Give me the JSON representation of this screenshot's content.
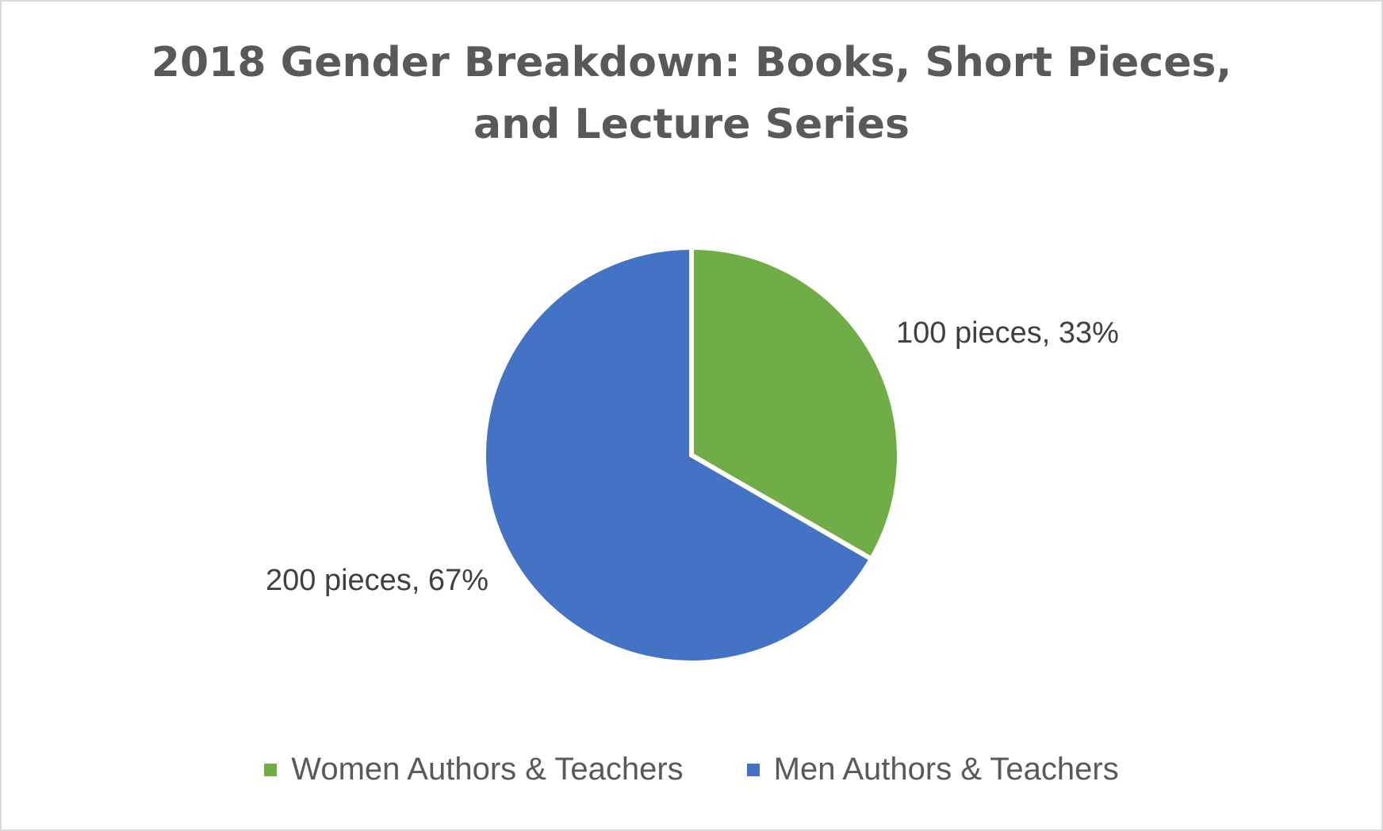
{
  "chart_data": {
    "type": "pie",
    "title_lines": [
      "2018 Gender Breakdown: Books, Short Pieces,",
      "and Lecture Series"
    ],
    "categories": [
      "Women Authors & Teachers",
      "Men Authors & Teachers"
    ],
    "values": [
      100,
      200
    ],
    "percents": [
      33,
      67
    ],
    "data_labels": [
      "100 pieces, 33%",
      "200 pieces, 67%"
    ],
    "colors": [
      "#70ad47",
      "#4472c4"
    ],
    "start_angle_deg": 0,
    "direction": "clockwise",
    "legend_position": "bottom"
  }
}
